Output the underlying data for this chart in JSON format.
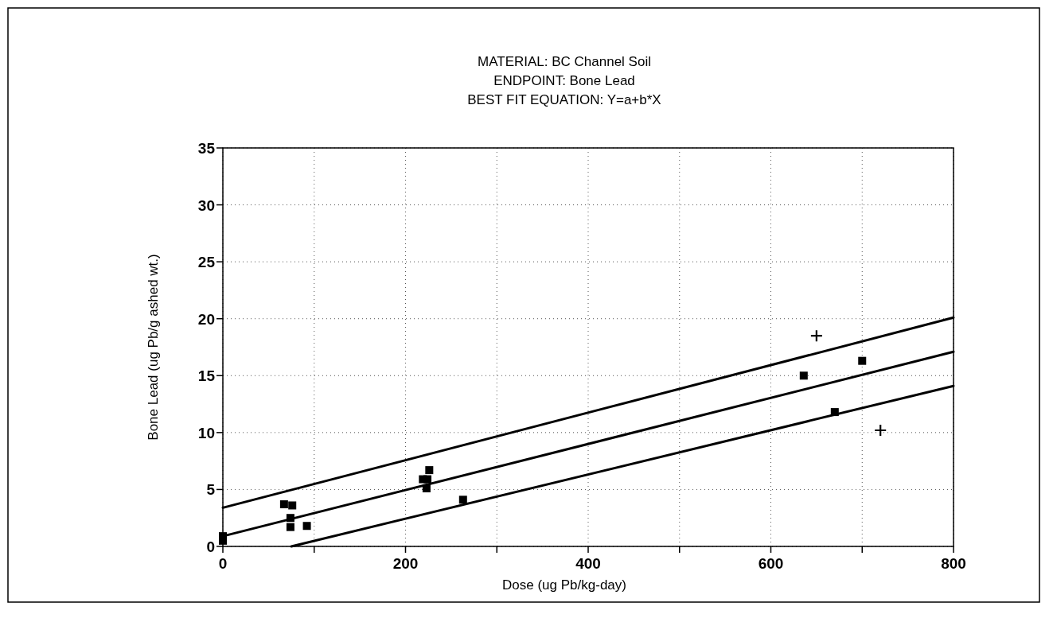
{
  "chart_data": {
    "type": "scatter",
    "title": "MATERIAL:  BC Channel Soil\nENDPOINT:  Bone Lead\nBEST FIT EQUATION:  Y=a+b*X",
    "xlabel": "Dose (ug Pb/kg-day)",
    "ylabel": "Bone Lead (ug Pb/g ashed wt.)",
    "xlim": [
      0,
      800
    ],
    "ylim": [
      0,
      35
    ],
    "xticks": [
      0,
      {
        "value": 100,
        "label": null
      },
      200,
      {
        "value": 300,
        "label": null
      },
      400,
      {
        "value": 500,
        "label": null
      },
      600,
      {
        "value": 700,
        "label": null
      },
      800
    ],
    "yticks": [
      0,
      5,
      10,
      15,
      20,
      25,
      30,
      35
    ],
    "grid": true,
    "series": [
      {
        "marker": "square",
        "color": "#000000",
        "x": [
          0,
          0,
          67,
          76,
          74,
          74,
          92,
          219,
          224,
          226,
          223,
          263,
          636,
          670,
          700
        ],
        "values": [
          0.5,
          0.9,
          3.7,
          3.6,
          2.5,
          1.7,
          1.8,
          5.9,
          5.9,
          6.7,
          5.1,
          4.1,
          15.0,
          11.8,
          16.3
        ]
      },
      {
        "marker": "cross",
        "color": "#000000",
        "x": [
          650,
          720
        ],
        "values": [
          18.5,
          10.2
        ]
      },
      {
        "type": "line",
        "line_style": "solid",
        "color": "#000000",
        "x": [
          0,
          800
        ],
        "values": [
          0.9,
          17.1
        ]
      },
      {
        "type": "line",
        "line_style": "solid",
        "color": "#000000",
        "x": [
          0,
          800
        ],
        "values": [
          3.4,
          20.1
        ]
      },
      {
        "type": "line",
        "line_style": "solid",
        "color": "#000000",
        "x": [
          75,
          800
        ],
        "values": [
          0,
          14.1
        ]
      }
    ]
  }
}
